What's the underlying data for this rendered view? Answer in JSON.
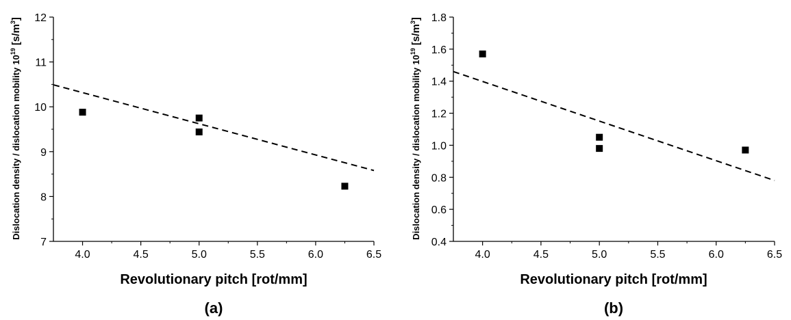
{
  "chart_data": [
    {
      "type": "scatter",
      "panel_label": "(a)",
      "xlabel": "Revolutionary pitch [rot/mm]",
      "ylabel": "Dislocation density / dislocation mobility",
      "ylabel_unit_prefix": "10",
      "ylabel_unit_exp": "19",
      "ylabel_unit_rest": " [s/m",
      "ylabel_unit_exp2": "3",
      "ylabel_unit_close": "]",
      "xlim": [
        3.75,
        6.5
      ],
      "ylim": [
        7,
        12
      ],
      "xticks": [
        "4.0",
        "4.5",
        "5.0",
        "5.5",
        "6.0",
        "6.5"
      ],
      "yticks": [
        "7",
        "8",
        "9",
        "10",
        "11",
        "12"
      ],
      "points": [
        {
          "x": 4.0,
          "y": 9.88
        },
        {
          "x": 5.0,
          "y": 9.75
        },
        {
          "x": 5.0,
          "y": 9.44
        },
        {
          "x": 6.25,
          "y": 8.23
        }
      ],
      "trendline": {
        "style": "dashed",
        "x": [
          3.75,
          6.5
        ],
        "y": [
          10.49,
          8.58
        ]
      },
      "grid": false,
      "legend": "none"
    },
    {
      "type": "scatter",
      "panel_label": "(b)",
      "xlabel": "Revolutionary pitch [rot/mm]",
      "ylabel": "Dislocation density / dislocation mobility",
      "ylabel_unit_prefix": "10",
      "ylabel_unit_exp": "19",
      "ylabel_unit_rest": " [s/m",
      "ylabel_unit_exp2": "3",
      "ylabel_unit_close": "]",
      "xlim": [
        3.75,
        6.5
      ],
      "ylim": [
        0.4,
        1.8
      ],
      "xticks": [
        "4.0",
        "4.5",
        "5.0",
        "5.5",
        "6.0",
        "6.5"
      ],
      "yticks": [
        "0.4",
        "0.6",
        "0.8",
        "1.0",
        "1.2",
        "1.4",
        "1.6",
        "1.8"
      ],
      "points": [
        {
          "x": 4.0,
          "y": 1.57
        },
        {
          "x": 5.0,
          "y": 1.05
        },
        {
          "x": 5.0,
          "y": 0.98
        },
        {
          "x": 6.25,
          "y": 0.97
        }
      ],
      "trendline": {
        "style": "dashed",
        "x": [
          3.75,
          6.5
        ],
        "y": [
          1.46,
          0.78
        ]
      },
      "grid": false,
      "legend": "none"
    }
  ]
}
